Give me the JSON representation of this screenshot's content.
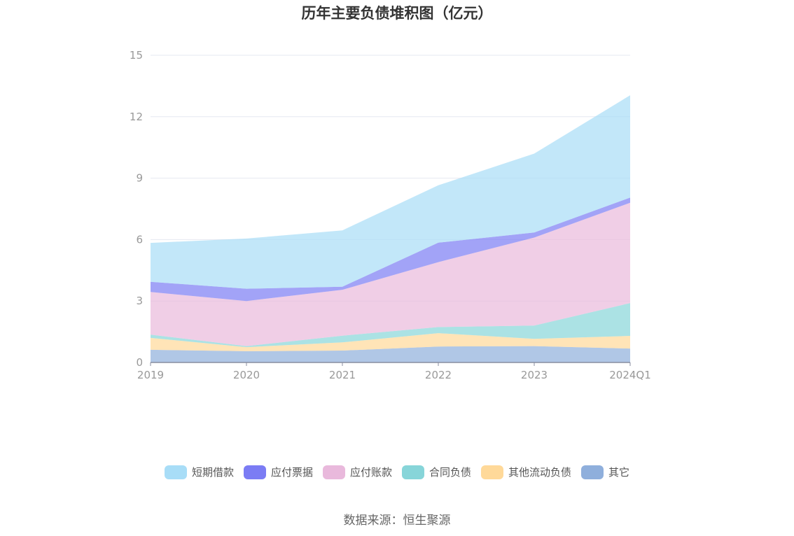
{
  "chart_data": {
    "type": "area",
    "stacked": true,
    "title": "历年主要负债堆积图（亿元）",
    "categories": [
      "2019",
      "2020",
      "2021",
      "2022",
      "2023",
      "2024Q1"
    ],
    "ylim": [
      0,
      15
    ],
    "yticks": [
      0,
      3,
      6,
      9,
      12,
      15
    ],
    "xlabel": "",
    "ylabel": "",
    "series": [
      {
        "name": "其它",
        "color": "#8fafdc",
        "values": [
          0.62,
          0.55,
          0.58,
          0.78,
          0.8,
          0.68
        ]
      },
      {
        "name": "其他流动负债",
        "color": "#ffd999",
        "values": [
          0.58,
          0.2,
          0.4,
          0.65,
          0.35,
          0.62
        ]
      },
      {
        "name": "合同负债",
        "color": "#87d5d9",
        "values": [
          0.16,
          0.05,
          0.33,
          0.3,
          0.65,
          1.6
        ]
      },
      {
        "name": "应付账款",
        "color": "#e9b9dc",
        "values": [
          2.08,
          2.2,
          2.24,
          3.17,
          4.3,
          4.9
        ]
      },
      {
        "name": "应付票据",
        "color": "#7b7cf4",
        "values": [
          0.5,
          0.6,
          0.15,
          0.95,
          0.25,
          0.25
        ]
      },
      {
        "name": "短期借款",
        "color": "#a8ddf7",
        "values": [
          1.9,
          2.45,
          2.75,
          2.8,
          3.85,
          5.0
        ]
      }
    ],
    "legend_order": [
      "短期借款",
      "应付票据",
      "应付账款",
      "合同负债",
      "其他流动负债",
      "其它"
    ],
    "legend_position": "bottom"
  },
  "source_text": "数据来源：恒生聚源"
}
